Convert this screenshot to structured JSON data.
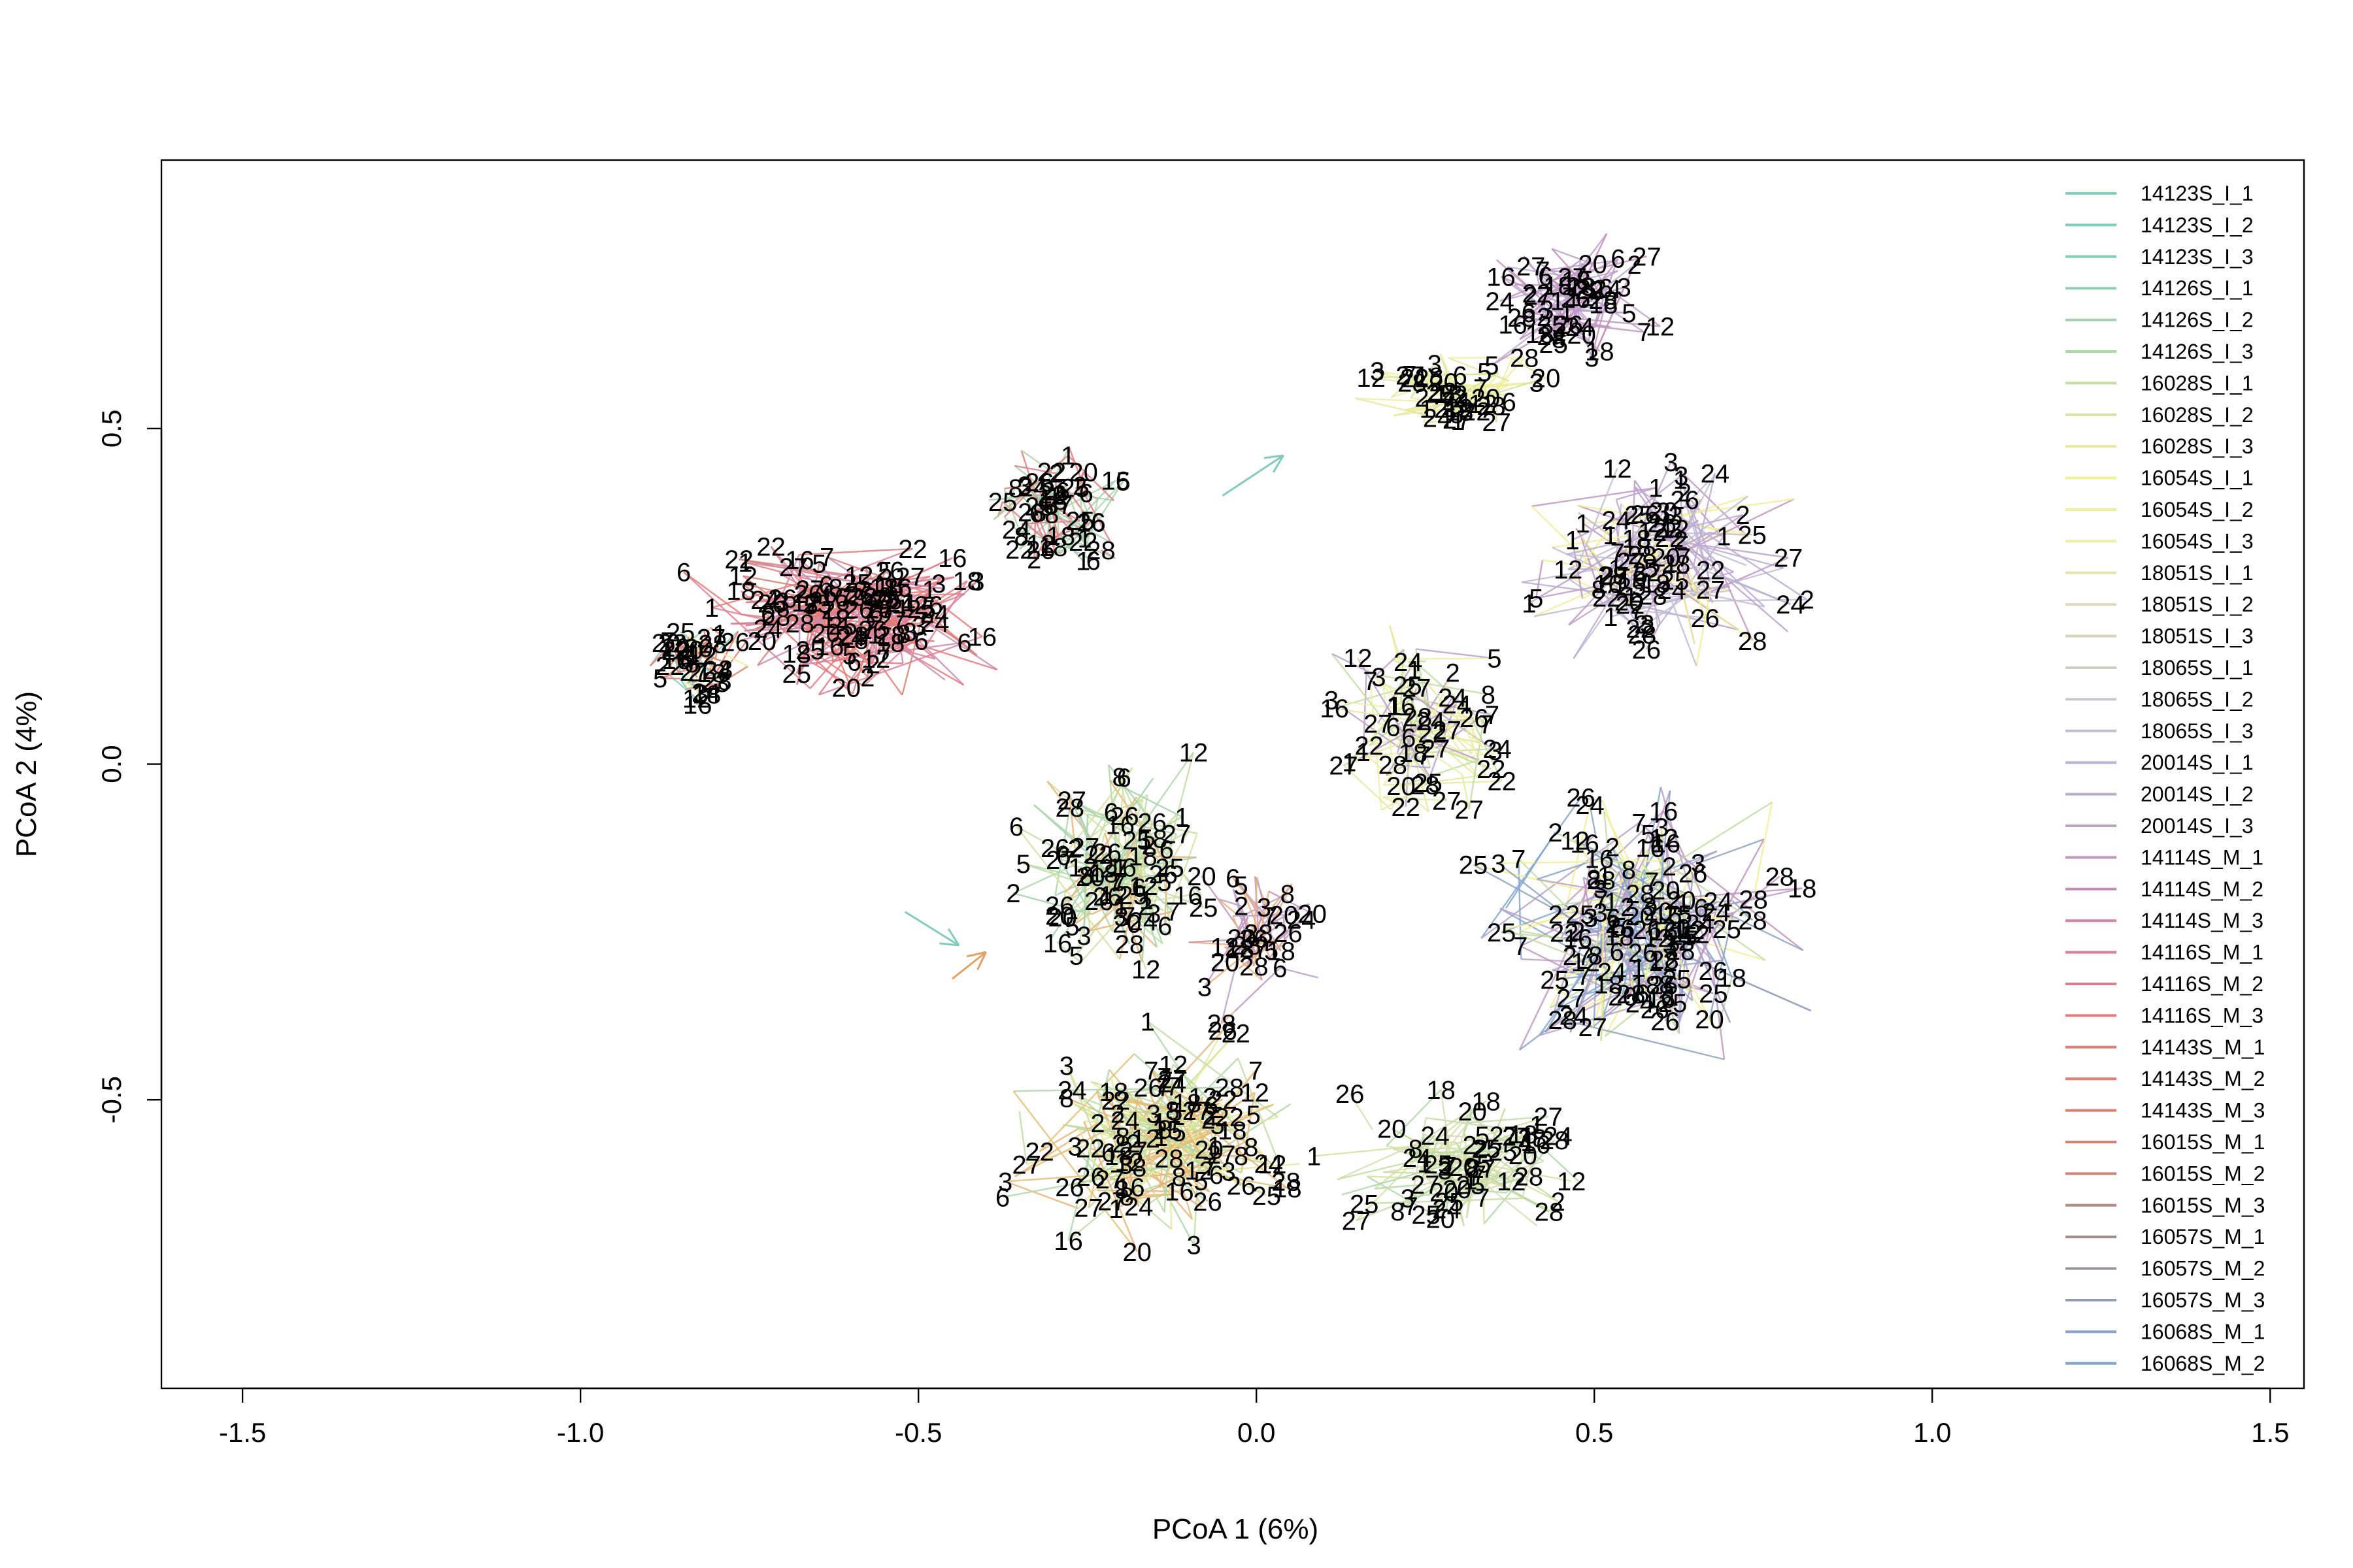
{
  "chart_data": {
    "type": "scatter",
    "title": "",
    "xlabel": "PCoA 1 (6%)",
    "ylabel": "PCoA 2 (4%)",
    "xlim": [
      -1.62,
      1.55
    ],
    "ylim": [
      -0.93,
      0.9
    ],
    "xticks": [
      -1.5,
      -1.0,
      -0.5,
      0.0,
      0.5,
      1.0,
      1.5
    ],
    "xtick_labels": [
      "-1.5",
      "-1.0",
      "-0.5",
      "0.0",
      "0.5",
      "1.0",
      "1.5"
    ],
    "yticks": [
      -0.5,
      0.0,
      0.5
    ],
    "ytick_labels": [
      "-0.5",
      "0.0",
      "0.5"
    ],
    "grid": false,
    "legend_position": "top-right",
    "legend": [
      {
        "name": "14123S_I_1",
        "color": "#7fcdbb"
      },
      {
        "name": "14123S_I_2",
        "color": "#7fcdbb"
      },
      {
        "name": "14123S_I_3",
        "color": "#80cdb6"
      },
      {
        "name": "14126S_I_1",
        "color": "#8fd1b0"
      },
      {
        "name": "14126S_I_2",
        "color": "#9dd4ab"
      },
      {
        "name": "14126S_I_3",
        "color": "#acd9a4"
      },
      {
        "name": "16028S_I_1",
        "color": "#c1dea0"
      },
      {
        "name": "16028S_I_2",
        "color": "#d3e39d"
      },
      {
        "name": "16028S_I_3",
        "color": "#e6ea98"
      },
      {
        "name": "16054S_I_1",
        "color": "#f2f08f"
      },
      {
        "name": "16054S_I_2",
        "color": "#f0f097"
      },
      {
        "name": "16054S_I_3",
        "color": "#ecefa2"
      },
      {
        "name": "18051S_I_1",
        "color": "#e3e6a8"
      },
      {
        "name": "18051S_I_2",
        "color": "#dadcb0"
      },
      {
        "name": "18051S_I_3",
        "color": "#d3d5b6"
      },
      {
        "name": "18065S_I_1",
        "color": "#cfd0c2"
      },
      {
        "name": "18065S_I_2",
        "color": "#c9c7cc"
      },
      {
        "name": "18065S_I_3",
        "color": "#c1bdd5"
      },
      {
        "name": "20014S_I_1",
        "color": "#bbb5dd"
      },
      {
        "name": "20014S_I_2",
        "color": "#b8acd6"
      },
      {
        "name": "20014S_I_3",
        "color": "#bb9fcd"
      },
      {
        "name": "14114S_M_1",
        "color": "#c293c2"
      },
      {
        "name": "14114S_M_2",
        "color": "#c98bb6"
      },
      {
        "name": "14114S_M_3",
        "color": "#d385a8"
      },
      {
        "name": "14116S_M_1",
        "color": "#e07e98"
      },
      {
        "name": "14116S_M_2",
        "color": "#e87a88"
      },
      {
        "name": "14116S_M_3",
        "color": "#ec7878"
      },
      {
        "name": "14143S_M_1",
        "color": "#ee776e"
      },
      {
        "name": "14143S_M_2",
        "color": "#ec7868"
      },
      {
        "name": "14143S_M_3",
        "color": "#e27c6c"
      },
      {
        "name": "16015S_M_1",
        "color": "#d88072"
      },
      {
        "name": "16015S_M_2",
        "color": "#ca8479"
      },
      {
        "name": "16015S_M_3",
        "color": "#b68883"
      },
      {
        "name": "16057S_M_1",
        "color": "#a58c8f"
      },
      {
        "name": "16057S_M_2",
        "color": "#9c94a6"
      },
      {
        "name": "16057S_M_3",
        "color": "#949ab4"
      },
      {
        "name": "16068S_M_1",
        "color": "#8ba2c8"
      },
      {
        "name": "16068S_M_2",
        "color": "#7ea6d6"
      }
    ],
    "point_labels": [
      "1",
      "2",
      "3",
      "5",
      "6",
      "7",
      "8",
      "12",
      "16",
      "18",
      "20",
      "22",
      "24",
      "25",
      "26",
      "27",
      "28"
    ],
    "clusters": [
      {
        "center": [
          -0.6,
          0.22
        ],
        "spread": [
          0.22,
          0.12
        ],
        "colors": [
          "#ec7878",
          "#e07e98",
          "#ee776e",
          "#d88072",
          "#c98bb6"
        ],
        "n": 190
      },
      {
        "center": [
          -0.82,
          0.15
        ],
        "spread": [
          0.08,
          0.06
        ],
        "colors": [
          "#ec7868",
          "#e27c6c",
          "#f2f08f",
          "#7fcdbb"
        ],
        "n": 60
      },
      {
        "center": [
          -0.3,
          0.38
        ],
        "spread": [
          0.1,
          0.1
        ],
        "colors": [
          "#e87a88",
          "#ec7878",
          "#acd9a4",
          "#9dd4ab"
        ],
        "n": 80
      },
      {
        "center": [
          -0.2,
          -0.15
        ],
        "spread": [
          0.15,
          0.17
        ],
        "colors": [
          "#acd9a4",
          "#c1dea0",
          "#d3e39d",
          "#f0b070",
          "#9dd4ab"
        ],
        "n": 130
      },
      {
        "center": [
          -0.15,
          -0.55
        ],
        "spread": [
          0.2,
          0.17
        ],
        "colors": [
          "#f0b070",
          "#e6c070",
          "#acd9a4",
          "#c1dea0",
          "#e6ea98"
        ],
        "n": 180
      },
      {
        "center": [
          0.3,
          0.55
        ],
        "spread": [
          0.15,
          0.06
        ],
        "colors": [
          "#f2f08f",
          "#ecefa2",
          "#e6ea98",
          "#d3e39d"
        ],
        "n": 70
      },
      {
        "center": [
          0.45,
          0.7
        ],
        "spread": [
          0.12,
          0.1
        ],
        "colors": [
          "#c293c2",
          "#bb9fcd",
          "#c98bb6",
          "#b8acd6"
        ],
        "n": 90
      },
      {
        "center": [
          0.6,
          0.3
        ],
        "spread": [
          0.2,
          0.15
        ],
        "colors": [
          "#bb9fcd",
          "#c293c2",
          "#f2f08f",
          "#c1bdd5",
          "#b8acd6"
        ],
        "n": 140
      },
      {
        "center": [
          0.55,
          -0.25
        ],
        "spread": [
          0.25,
          0.2
        ],
        "colors": [
          "#bb9fcd",
          "#c293c2",
          "#8ba2c8",
          "#f2f08f",
          "#c1dea0",
          "#7ea6d6"
        ],
        "n": 210
      },
      {
        "center": [
          0.3,
          -0.6
        ],
        "spread": [
          0.18,
          0.12
        ],
        "colors": [
          "#d3e39d",
          "#c1dea0",
          "#dadcb0",
          "#acd9a4"
        ],
        "n": 110
      },
      {
        "center": [
          0.25,
          0.05
        ],
        "spread": [
          0.15,
          0.15
        ],
        "colors": [
          "#e6ea98",
          "#c1dea0",
          "#bb9fcd",
          "#ecefa2"
        ],
        "n": 90
      },
      {
        "center": [
          0.0,
          -0.25
        ],
        "spread": [
          0.1,
          0.12
        ],
        "colors": [
          "#bb9fcd",
          "#f0b070",
          "#c293c2"
        ],
        "n": 50
      }
    ],
    "arrows": [
      {
        "from": [
          -0.05,
          0.4
        ],
        "to": [
          0.04,
          0.46
        ],
        "color": "#7fcdbb"
      },
      {
        "from": [
          -0.52,
          -0.22
        ],
        "to": [
          -0.44,
          -0.27
        ],
        "color": "#7fcdbb"
      },
      {
        "from": [
          -0.45,
          -0.32
        ],
        "to": [
          -0.4,
          -0.28
        ],
        "color": "#e6a060"
      }
    ]
  }
}
